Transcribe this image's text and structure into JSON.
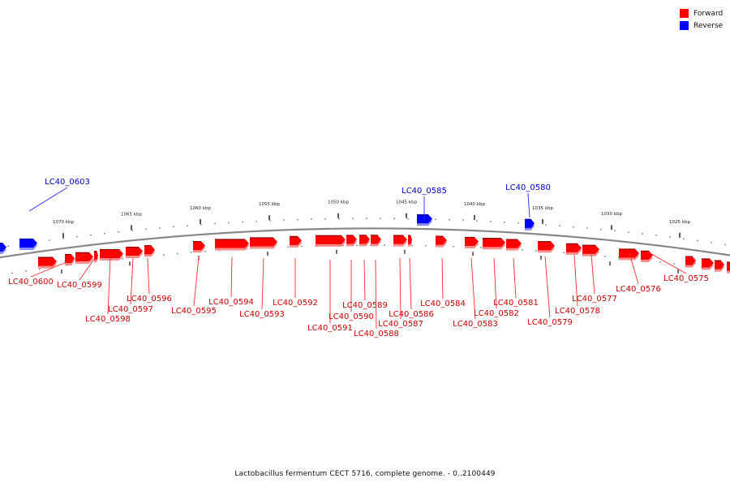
{
  "caption": "Lactobacillus fermentum CECT 5716, complete genome. - 0..2100449",
  "legend": [
    {
      "label": "Forward",
      "color": "#ff0000"
    },
    {
      "label": "Reverse",
      "color": "#0000ff"
    }
  ],
  "colors": {
    "forward": "#ff0000",
    "reverse": "#0000ff",
    "backbone": "#888888"
  },
  "scale_ticks": [
    "1070 kbp",
    "1065 kbp",
    "1060 kbp",
    "1055 kbp",
    "1050 kbp",
    "1045 kbp",
    "1040 kbp",
    "1035 kbp",
    "1030 kbp",
    "1025 kbp"
  ],
  "genes": [
    {
      "label": "LC40_0603",
      "strand": "reverse"
    },
    {
      "label": "LC40_0585",
      "strand": "reverse"
    },
    {
      "label": "LC40_0580",
      "strand": "reverse"
    },
    {
      "label": "LC40_0600",
      "strand": "forward"
    },
    {
      "label": "LC40_0599",
      "strand": "forward"
    },
    {
      "label": "LC40_0598",
      "strand": "forward"
    },
    {
      "label": "LC40_0597",
      "strand": "forward"
    },
    {
      "label": "LC40_0596",
      "strand": "forward"
    },
    {
      "label": "LC40_0595",
      "strand": "forward"
    },
    {
      "label": "LC40_0594",
      "strand": "forward"
    },
    {
      "label": "LC40_0593",
      "strand": "forward"
    },
    {
      "label": "LC40_0592",
      "strand": "forward"
    },
    {
      "label": "LC40_0591",
      "strand": "forward"
    },
    {
      "label": "LC40_0590",
      "strand": "forward"
    },
    {
      "label": "LC40_0589",
      "strand": "forward"
    },
    {
      "label": "LC40_0588",
      "strand": "forward"
    },
    {
      "label": "LC40_0587",
      "strand": "forward"
    },
    {
      "label": "LC40_0586",
      "strand": "forward"
    },
    {
      "label": "LC40_0584",
      "strand": "forward"
    },
    {
      "label": "LC40_0583",
      "strand": "forward"
    },
    {
      "label": "LC40_0582",
      "strand": "forward"
    },
    {
      "label": "LC40_0581",
      "strand": "forward"
    },
    {
      "label": "LC40_0579",
      "strand": "forward"
    },
    {
      "label": "LC40_0578",
      "strand": "forward"
    },
    {
      "label": "LC40_0577",
      "strand": "forward"
    },
    {
      "label": "LC40_0576",
      "strand": "forward"
    },
    {
      "label": "LC40_0575",
      "strand": "forward"
    }
  ]
}
